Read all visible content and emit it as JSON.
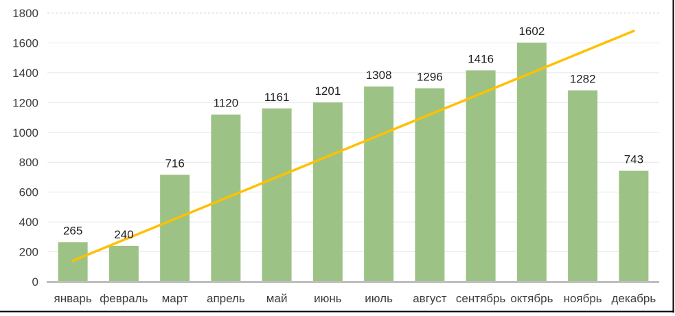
{
  "chart_data": {
    "type": "bar",
    "title": "",
    "categories": [
      "январь",
      "февраль",
      "март",
      "апрель",
      "май",
      "июнь",
      "июль",
      "август",
      "сентябрь",
      "октябрь",
      "ноябрь",
      "декабрь"
    ],
    "values": [
      265,
      240,
      716,
      1120,
      1161,
      1201,
      1308,
      1296,
      1416,
      1602,
      1282,
      743
    ],
    "data_labels": [
      265,
      240,
      716,
      1120,
      1161,
      1201,
      1308,
      1296,
      1416,
      1602,
      1282,
      743
    ],
    "ylabel": "",
    "xlabel": "",
    "ylim": [
      0,
      1800
    ],
    "yticks": [
      0,
      200,
      400,
      600,
      800,
      1000,
      1200,
      1400,
      1600,
      1800
    ],
    "grid": "horizontal",
    "legend": "none",
    "trendline": {
      "shape": "straight-line",
      "start_category": "январь",
      "end_category": "декабрь",
      "start_value": 140,
      "end_value": 1680,
      "color": "#FFC000"
    },
    "colors": {
      "bar_fill": "#9DC286",
      "trend_line": "#FFC000",
      "gridline": "#E7E7E7",
      "gridline_top_dashed": "#D6D6D6",
      "axis_line": "#BFBFBF",
      "tick_label_text": "#3D3D3D",
      "data_label_text": "#1F1F1F",
      "frame_border": "#000000"
    }
  }
}
